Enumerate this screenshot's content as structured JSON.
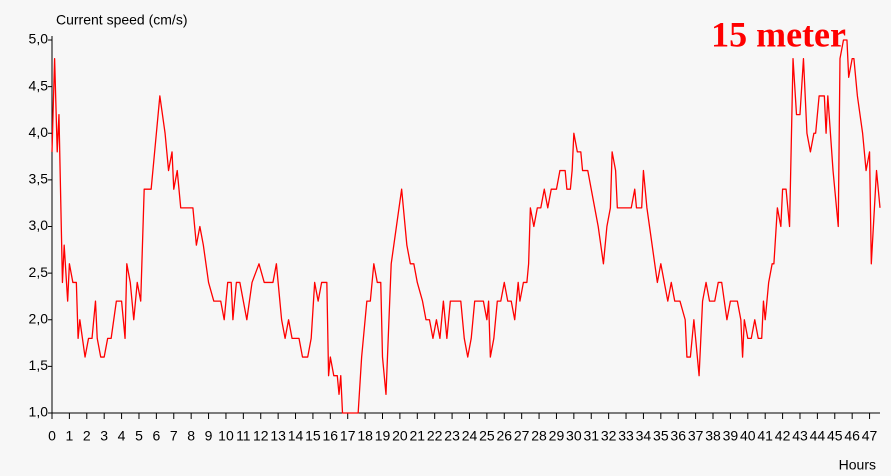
{
  "chart_data": {
    "type": "line",
    "title": "15 meter",
    "y_label": "Current speed (cm/s)",
    "x_label": "Hours",
    "color": "#ff0000",
    "x": [
      0,
      0.15,
      0.3,
      0.4,
      0.6,
      0.7,
      0.9,
      1.0,
      1.2,
      1.4,
      1.5,
      1.6,
      1.9,
      2.1,
      2.3,
      2.5,
      2.6,
      2.8,
      3.0,
      3.2,
      3.4,
      3.7,
      4.0,
      4.2,
      4.3,
      4.5,
      4.7,
      4.9,
      5.1,
      5.3,
      5.7,
      6.0,
      6.2,
      6.5,
      6.7,
      6.9,
      7.0,
      7.2,
      7.4,
      7.9,
      8.1,
      8.3,
      8.5,
      8.7,
      9.0,
      9.3,
      9.7,
      9.9,
      10.1,
      10.3,
      10.4,
      10.6,
      10.8,
      11.2,
      11.5,
      11.9,
      12.2,
      12.7,
      12.9,
      13.2,
      13.4,
      13.6,
      13.8,
      14.2,
      14.4,
      14.7,
      14.9,
      15.1,
      15.3,
      15.5,
      15.8,
      15.9,
      16.0,
      16.2,
      16.4,
      16.5,
      16.6,
      16.7,
      17.6,
      17.8,
      18.1,
      18.3,
      18.5,
      18.7,
      18.9,
      19.0,
      19.2,
      19.5,
      19.8,
      20.1,
      20.4,
      20.6,
      20.8,
      21.0,
      21.3,
      21.5,
      21.7,
      21.9,
      22.1,
      22.3,
      22.5,
      22.7,
      22.9,
      23.5,
      23.7,
      23.9,
      24.1,
      24.3,
      24.8,
      25.0,
      25.1,
      25.2,
      25.4,
      25.6,
      25.8,
      26.0,
      26.2,
      26.4,
      26.6,
      26.8,
      26.9,
      27.1,
      27.3,
      27.4,
      27.5,
      27.7,
      27.9,
      28.1,
      28.3,
      28.5,
      28.7,
      29.0,
      29.2,
      29.5,
      29.6,
      29.8,
      29.9,
      30.0,
      30.2,
      30.4,
      30.5,
      30.8,
      31.0,
      31.2,
      31.4,
      31.7,
      31.9,
      32.1,
      32.2,
      32.4,
      32.5,
      33.1,
      33.3,
      33.5,
      33.6,
      33.9,
      34.0,
      34.2,
      34.5,
      34.8,
      35.0,
      35.2,
      35.4,
      35.6,
      35.8,
      36.1,
      36.4,
      36.5,
      36.7,
      36.9,
      37.1,
      37.2,
      37.4,
      37.6,
      37.8,
      38.1,
      38.3,
      38.5,
      38.8,
      39.0,
      39.4,
      39.6,
      39.7,
      39.8,
      40.0,
      40.2,
      40.4,
      40.6,
      40.8,
      40.9,
      41.0,
      41.2,
      41.4,
      41.5,
      41.7,
      41.9,
      42.0,
      42.2,
      42.4,
      42.6,
      42.8,
      43.0,
      43.2,
      43.4,
      43.6,
      43.8,
      43.9,
      44.1,
      44.4,
      44.5,
      44.6,
      44.9,
      45.2,
      45.3,
      45.5,
      45.7,
      45.8,
      46.0,
      46.1,
      46.3,
      46.6,
      46.8,
      47.0,
      47.1,
      47.4,
      47.6
    ],
    "values": [
      3.8,
      4.8,
      3.8,
      4.2,
      2.4,
      2.8,
      2.2,
      2.6,
      2.4,
      2.4,
      1.8,
      2.0,
      1.6,
      1.8,
      1.8,
      2.2,
      1.8,
      1.6,
      1.6,
      1.8,
      1.8,
      2.2,
      2.2,
      1.8,
      2.6,
      2.4,
      2.0,
      2.4,
      2.2,
      3.4,
      3.4,
      4.0,
      4.4,
      4.0,
      3.6,
      3.8,
      3.4,
      3.6,
      3.2,
      3.2,
      3.2,
      2.8,
      3.0,
      2.8,
      2.4,
      2.2,
      2.2,
      2.0,
      2.4,
      2.4,
      2.0,
      2.4,
      2.4,
      2.0,
      2.4,
      2.6,
      2.4,
      2.4,
      2.6,
      2.0,
      1.8,
      2.0,
      1.8,
      1.8,
      1.6,
      1.6,
      1.8,
      2.4,
      2.2,
      2.4,
      2.4,
      1.4,
      1.6,
      1.4,
      1.4,
      1.2,
      1.4,
      1.0,
      1.0,
      1.6,
      2.2,
      2.2,
      2.6,
      2.4,
      2.4,
      1.6,
      1.2,
      2.6,
      3.0,
      3.4,
      2.8,
      2.6,
      2.6,
      2.4,
      2.2,
      2.0,
      2.0,
      1.8,
      2.0,
      1.8,
      2.2,
      1.8,
      2.2,
      2.2,
      1.8,
      1.6,
      1.8,
      2.2,
      2.2,
      2.0,
      2.2,
      1.6,
      1.8,
      2.2,
      2.2,
      2.4,
      2.2,
      2.2,
      2.0,
      2.4,
      2.2,
      2.4,
      2.4,
      2.6,
      3.2,
      3.0,
      3.2,
      3.2,
      3.4,
      3.2,
      3.4,
      3.4,
      3.6,
      3.6,
      3.4,
      3.4,
      3.6,
      4.0,
      3.8,
      3.8,
      3.6,
      3.6,
      3.4,
      3.2,
      3.0,
      2.6,
      3.0,
      3.2,
      3.8,
      3.6,
      3.2,
      3.2,
      3.2,
      3.4,
      3.2,
      3.2,
      3.6,
      3.2,
      2.8,
      2.4,
      2.6,
      2.4,
      2.2,
      2.4,
      2.2,
      2.2,
      2.0,
      1.6,
      1.6,
      2.0,
      1.6,
      1.4,
      2.2,
      2.4,
      2.2,
      2.2,
      2.4,
      2.4,
      2.0,
      2.2,
      2.2,
      2.0,
      1.6,
      2.0,
      1.8,
      1.8,
      2.0,
      1.8,
      1.8,
      2.2,
      2.0,
      2.4,
      2.6,
      2.6,
      3.2,
      3.0,
      3.4,
      3.4,
      3.0,
      4.8,
      4.2,
      4.2,
      4.8,
      4.0,
      3.8,
      4.0,
      4.0,
      4.4,
      4.4,
      4.0,
      4.4,
      3.6,
      3.0,
      4.8,
      5.0,
      5.0,
      4.6,
      4.8,
      4.8,
      4.4,
      4.0,
      3.6,
      3.8,
      2.6,
      3.6,
      3.2
    ],
    "xlim": [
      0,
      47.6
    ],
    "xticks": [
      0,
      1,
      2,
      3,
      4,
      5,
      6,
      7,
      8,
      9,
      10,
      11,
      12,
      13,
      14,
      15,
      16,
      17,
      18,
      19,
      20,
      21,
      22,
      23,
      24,
      25,
      26,
      27,
      28,
      29,
      30,
      31,
      32,
      33,
      34,
      35,
      36,
      37,
      38,
      39,
      40,
      41,
      42,
      43,
      44,
      45,
      46,
      47
    ],
    "ylim": [
      1,
      5
    ],
    "yticks": [
      {
        "value": 1,
        "label": "1,0"
      },
      {
        "value": 1.5,
        "label": "1,5"
      },
      {
        "value": 2,
        "label": "2,0"
      },
      {
        "value": 2.5,
        "label": "2,5"
      },
      {
        "value": 3,
        "label": "3,0"
      },
      {
        "value": 3.5,
        "label": "3,5"
      },
      {
        "value": 4,
        "label": "4,0"
      },
      {
        "value": 4.5,
        "label": "4,5"
      },
      {
        "value": 5,
        "label": "5,0"
      }
    ]
  }
}
